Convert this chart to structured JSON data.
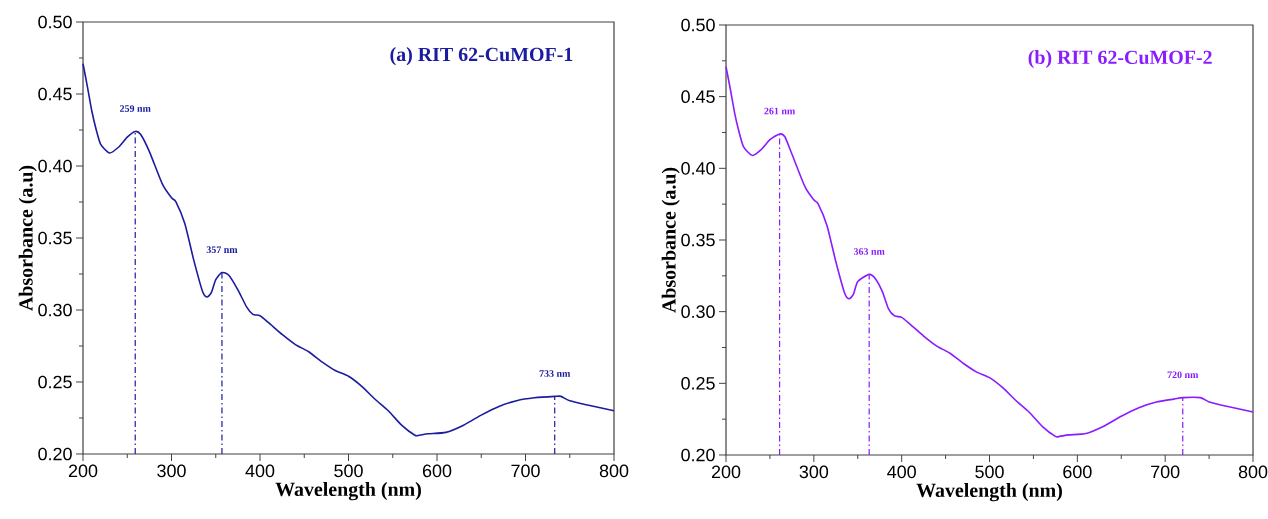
{
  "chart_data": [
    {
      "type": "line",
      "title": "(a) RIT 62-CuMOF-1",
      "xlabel": "Wavelength (nm)",
      "ylabel": "Absorbance (a.u)",
      "xlim": [
        200,
        800
      ],
      "ylim": [
        0.2,
        0.5
      ],
      "xticks": [
        200,
        300,
        400,
        500,
        600,
        700,
        800
      ],
      "yticks": [
        {
          "value": 0.2,
          "label": "0.20"
        },
        {
          "value": 0.25,
          "label": "0.25"
        },
        {
          "value": 0.3,
          "label": "0.30"
        },
        {
          "value": 0.35,
          "label": "0.35"
        },
        {
          "value": 0.4,
          "label": "0.40"
        },
        {
          "value": 0.45,
          "label": "0.45"
        },
        {
          "value": 0.5,
          "label": "0.50"
        }
      ],
      "x": [
        200,
        205,
        210,
        215,
        220,
        230,
        240,
        250,
        259,
        265,
        275,
        290,
        300,
        305,
        315,
        325,
        335,
        340,
        345,
        350,
        357,
        365,
        375,
        385,
        392,
        400,
        410,
        425,
        440,
        455,
        470,
        485,
        500,
        515,
        530,
        545,
        560,
        575,
        580,
        590,
        610,
        630,
        650,
        670,
        690,
        710,
        733,
        740,
        750,
        770,
        800
      ],
      "series": [
        {
          "color": "#1c1ca0",
          "values": [
            0.471,
            0.455,
            0.438,
            0.425,
            0.415,
            0.409,
            0.413,
            0.42,
            0.424,
            0.422,
            0.41,
            0.387,
            0.378,
            0.375,
            0.36,
            0.335,
            0.313,
            0.309,
            0.312,
            0.321,
            0.326,
            0.324,
            0.314,
            0.302,
            0.297,
            0.296,
            0.291,
            0.283,
            0.276,
            0.271,
            0.264,
            0.258,
            0.254,
            0.247,
            0.238,
            0.23,
            0.22,
            0.213,
            0.213,
            0.214,
            0.215,
            0.22,
            0.227,
            0.233,
            0.237,
            0.239,
            0.24,
            0.24,
            0.237,
            0.234,
            0.23
          ]
        }
      ],
      "ref_lines": [
        {
          "axis": "x",
          "value": 259
        },
        {
          "axis": "x",
          "value": 357
        },
        {
          "axis": "x",
          "value": 733
        }
      ],
      "annotations": [
        {
          "text": "259 nm",
          "x": 259,
          "y": 0.424
        },
        {
          "text": "357 nm",
          "x": 357,
          "y": 0.326
        },
        {
          "text": "733 nm",
          "x": 733,
          "y": 0.24
        }
      ]
    },
    {
      "type": "line",
      "title": "(b) RIT 62-CuMOF-2",
      "xlabel": "Wavelength (nm)",
      "ylabel": "Absorbance (a.u)",
      "xlim": [
        200,
        800
      ],
      "ylim": [
        0.2,
        0.5
      ],
      "xticks": [
        200,
        300,
        400,
        500,
        600,
        700,
        800
      ],
      "yticks": [
        {
          "value": 0.2,
          "label": "0.20"
        },
        {
          "value": 0.25,
          "label": "0.25"
        },
        {
          "value": 0.3,
          "label": "0.30"
        },
        {
          "value": 0.35,
          "label": "0.35"
        },
        {
          "value": 0.4,
          "label": "0.40"
        },
        {
          "value": 0.45,
          "label": "0.45"
        },
        {
          "value": 0.5,
          "label": "0.50"
        }
      ],
      "x": [
        200,
        205,
        210,
        215,
        220,
        230,
        240,
        250,
        261,
        267,
        275,
        290,
        300,
        305,
        315,
        325,
        335,
        340,
        345,
        350,
        363,
        370,
        378,
        385,
        392,
        400,
        410,
        425,
        440,
        455,
        470,
        485,
        500,
        515,
        530,
        545,
        560,
        575,
        580,
        590,
        610,
        630,
        650,
        670,
        690,
        710,
        720,
        740,
        750,
        770,
        800
      ],
      "series": [
        {
          "color": "#8a1cff",
          "values": [
            0.471,
            0.455,
            0.438,
            0.425,
            0.415,
            0.409,
            0.413,
            0.42,
            0.424,
            0.422,
            0.41,
            0.387,
            0.378,
            0.375,
            0.36,
            0.335,
            0.313,
            0.309,
            0.312,
            0.321,
            0.326,
            0.323,
            0.314,
            0.302,
            0.297,
            0.296,
            0.291,
            0.283,
            0.276,
            0.271,
            0.264,
            0.258,
            0.254,
            0.247,
            0.238,
            0.23,
            0.22,
            0.213,
            0.213,
            0.214,
            0.215,
            0.22,
            0.227,
            0.233,
            0.237,
            0.239,
            0.24,
            0.24,
            0.237,
            0.234,
            0.23
          ]
        }
      ],
      "ref_lines": [
        {
          "axis": "x",
          "value": 261
        },
        {
          "axis": "x",
          "value": 363
        },
        {
          "axis": "x",
          "value": 720
        }
      ],
      "annotations": [
        {
          "text": "261 nm",
          "x": 261,
          "y": 0.424
        },
        {
          "text": "363 nm",
          "x": 363,
          "y": 0.326
        },
        {
          "text": "720 nm",
          "x": 720,
          "y": 0.24
        }
      ]
    }
  ]
}
